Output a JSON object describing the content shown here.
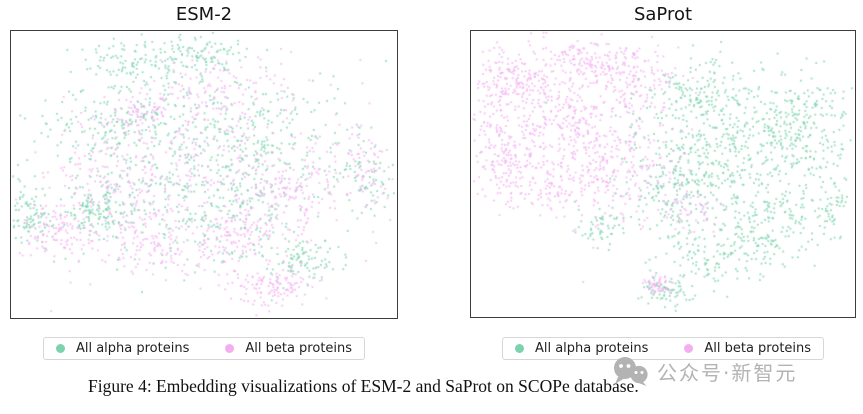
{
  "caption": "Figure 4: Embedding visualizations of ESM-2 and SaProt on SCOPe database.",
  "watermark": {
    "icon": "wechat-icon",
    "text": "公众号·新智元",
    "color": "#b3b3b3"
  },
  "legend": {
    "alpha_label": "All alpha proteins",
    "beta_label": "All beta proteins"
  },
  "colors": {
    "alpha": "#7bd2ad",
    "beta": "#f3aef0",
    "plot_border": "#3c3c3c"
  },
  "chart_data": [
    {
      "type": "scatter",
      "title": "ESM-2",
      "xlabel": "",
      "ylabel": "",
      "axes_visible": false,
      "grid": false,
      "legend_position": "below",
      "legend": [
        "All alpha proteins",
        "All beta proteins"
      ],
      "note": "t-SNE style embedding cloud; alpha and beta proteins heavily intermixed in one large blob",
      "coords": "clusters are [cx, cy, sx, sy, n] in normalized plot units, origin top-left, y increases downward",
      "marker_px": 1.8,
      "opacity": 0.8,
      "seed": 42,
      "series": [
        {
          "name": "All alpha proteins",
          "color": "#7bd2ad",
          "clusters": [
            [
              0.45,
              0.48,
              0.2,
              0.16,
              450
            ],
            [
              0.22,
              0.63,
              0.045,
              0.045,
              130
            ],
            [
              0.045,
              0.64,
              0.03,
              0.06,
              90
            ],
            [
              0.36,
              0.11,
              0.09,
              0.05,
              140
            ],
            [
              0.52,
              0.08,
              0.05,
              0.03,
              60
            ],
            [
              0.64,
              0.33,
              0.1,
              0.09,
              130
            ],
            [
              0.76,
              0.8,
              0.05,
              0.04,
              90
            ],
            [
              0.92,
              0.5,
              0.04,
              0.07,
              70
            ],
            [
              0.28,
              0.32,
              0.09,
              0.08,
              120
            ],
            [
              0.56,
              0.63,
              0.1,
              0.09,
              120
            ]
          ]
        },
        {
          "name": "All beta proteins",
          "color": "#f3aef0",
          "clusters": [
            [
              0.5,
              0.55,
              0.19,
              0.16,
              420
            ],
            [
              0.55,
              0.2,
              0.09,
              0.06,
              120
            ],
            [
              0.335,
              0.28,
              0.04,
              0.035,
              70
            ],
            [
              0.12,
              0.7,
              0.045,
              0.045,
              100
            ],
            [
              0.67,
              0.89,
              0.06,
              0.035,
              120
            ],
            [
              0.74,
              0.55,
              0.07,
              0.06,
              110
            ],
            [
              0.36,
              0.76,
              0.09,
              0.05,
              110
            ],
            [
              0.93,
              0.47,
              0.035,
              0.06,
              60
            ],
            [
              0.6,
              0.7,
              0.05,
              0.04,
              80
            ],
            [
              0.25,
              0.5,
              0.08,
              0.08,
              100
            ]
          ]
        }
      ]
    },
    {
      "type": "scatter",
      "title": "SaProt",
      "xlabel": "",
      "ylabel": "",
      "axes_visible": false,
      "grid": false,
      "legend_position": "below",
      "legend": [
        "All alpha proteins",
        "All beta proteins"
      ],
      "note": "t-SNE style embedding; beta proteins cluster on the left, alpha proteins on the right, largely separated with a small mixed cluster at bottom center",
      "coords": "clusters are [cx, cy, sx, sy, n] in normalized plot units, origin top-left, y increases downward",
      "marker_px": 1.8,
      "opacity": 0.8,
      "seed": 7,
      "series": [
        {
          "name": "All alpha proteins",
          "color": "#7bd2ad",
          "clusters": [
            [
              0.7,
              0.45,
              0.14,
              0.15,
              600
            ],
            [
              0.87,
              0.33,
              0.06,
              0.08,
              140
            ],
            [
              0.6,
              0.22,
              0.07,
              0.06,
              130
            ],
            [
              0.55,
              0.56,
              0.06,
              0.07,
              110
            ],
            [
              0.63,
              0.78,
              0.07,
              0.05,
              110
            ],
            [
              0.5,
              0.91,
              0.035,
              0.025,
              70
            ],
            [
              0.34,
              0.69,
              0.035,
              0.035,
              50
            ],
            [
              0.95,
              0.62,
              0.025,
              0.05,
              40
            ],
            [
              0.78,
              0.7,
              0.08,
              0.06,
              120
            ]
          ]
        },
        {
          "name": "All beta proteins",
          "color": "#f3aef0",
          "clusters": [
            [
              0.24,
              0.33,
              0.13,
              0.14,
              550
            ],
            [
              0.115,
              0.17,
              0.055,
              0.05,
              140
            ],
            [
              0.32,
              0.11,
              0.06,
              0.04,
              110
            ],
            [
              0.42,
              0.15,
              0.06,
              0.05,
              90
            ],
            [
              0.075,
              0.45,
              0.045,
              0.075,
              110
            ],
            [
              0.4,
              0.5,
              0.07,
              0.09,
              130
            ],
            [
              0.49,
              0.895,
              0.02,
              0.018,
              50
            ],
            [
              0.57,
              0.62,
              0.04,
              0.04,
              50
            ],
            [
              0.22,
              0.55,
              0.08,
              0.05,
              100
            ]
          ]
        }
      ]
    }
  ]
}
